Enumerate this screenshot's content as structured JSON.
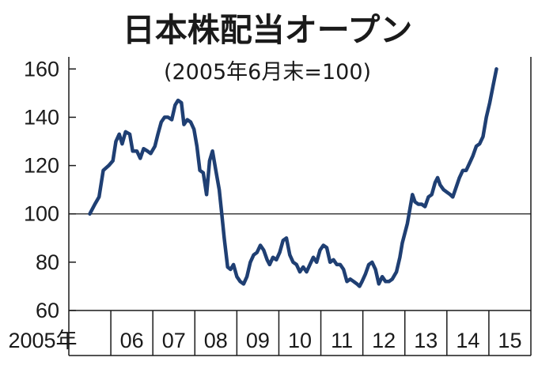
{
  "chart_data": {
    "type": "line",
    "title": "日本株配当オープン",
    "subtitle": "(2005年6月末=100)",
    "xlabel": "",
    "ylabel": "",
    "ylim": [
      60,
      165
    ],
    "yticks": [
      60,
      80,
      100,
      120,
      140,
      160
    ],
    "reference_line": 100,
    "grid": false,
    "x_categories": [
      "2005年",
      "06",
      "07",
      "08",
      "09",
      "10",
      "11",
      "12",
      "13",
      "14",
      "15"
    ],
    "series": [
      {
        "color": "#1f3f73",
        "points": [
          [
            2005.5,
            100
          ],
          [
            2005.62,
            104
          ],
          [
            2005.72,
            107
          ],
          [
            2005.82,
            118
          ],
          [
            2005.95,
            120
          ],
          [
            2006.05,
            122
          ],
          [
            2006.12,
            130
          ],
          [
            2006.2,
            133
          ],
          [
            2006.27,
            129
          ],
          [
            2006.35,
            134
          ],
          [
            2006.45,
            133
          ],
          [
            2006.52,
            126
          ],
          [
            2006.62,
            126
          ],
          [
            2006.7,
            123
          ],
          [
            2006.78,
            127
          ],
          [
            2006.87,
            126
          ],
          [
            2006.95,
            125
          ],
          [
            2007.05,
            128
          ],
          [
            2007.12,
            133
          ],
          [
            2007.2,
            138
          ],
          [
            2007.28,
            140
          ],
          [
            2007.36,
            140
          ],
          [
            2007.45,
            139
          ],
          [
            2007.53,
            145
          ],
          [
            2007.6,
            147
          ],
          [
            2007.68,
            146
          ],
          [
            2007.74,
            137
          ],
          [
            2007.82,
            139
          ],
          [
            2007.9,
            138
          ],
          [
            2007.98,
            135
          ],
          [
            2008.05,
            128
          ],
          [
            2008.12,
            118
          ],
          [
            2008.2,
            117
          ],
          [
            2008.28,
            108
          ],
          [
            2008.35,
            122
          ],
          [
            2008.42,
            126
          ],
          [
            2008.5,
            118
          ],
          [
            2008.58,
            110
          ],
          [
            2008.64,
            100
          ],
          [
            2008.7,
            90
          ],
          [
            2008.78,
            78
          ],
          [
            2008.85,
            77
          ],
          [
            2008.92,
            79
          ],
          [
            2009.0,
            74
          ],
          [
            2009.08,
            72
          ],
          [
            2009.16,
            71
          ],
          [
            2009.24,
            74
          ],
          [
            2009.32,
            80
          ],
          [
            2009.4,
            83
          ],
          [
            2009.48,
            84
          ],
          [
            2009.56,
            87
          ],
          [
            2009.64,
            85
          ],
          [
            2009.72,
            81
          ],
          [
            2009.78,
            79
          ],
          [
            2009.86,
            82
          ],
          [
            2009.94,
            81
          ],
          [
            2010.02,
            84
          ],
          [
            2010.1,
            89
          ],
          [
            2010.18,
            90
          ],
          [
            2010.26,
            83
          ],
          [
            2010.34,
            80
          ],
          [
            2010.42,
            79
          ],
          [
            2010.5,
            76
          ],
          [
            2010.58,
            78
          ],
          [
            2010.66,
            76
          ],
          [
            2010.74,
            79
          ],
          [
            2010.82,
            82
          ],
          [
            2010.9,
            80
          ],
          [
            2010.98,
            85
          ],
          [
            2011.06,
            87
          ],
          [
            2011.14,
            86
          ],
          [
            2011.22,
            80
          ],
          [
            2011.3,
            81
          ],
          [
            2011.38,
            79
          ],
          [
            2011.46,
            79
          ],
          [
            2011.54,
            77
          ],
          [
            2011.62,
            72
          ],
          [
            2011.7,
            73
          ],
          [
            2011.78,
            72
          ],
          [
            2011.86,
            71
          ],
          [
            2011.92,
            70
          ],
          [
            2011.98,
            72
          ],
          [
            2012.06,
            75
          ],
          [
            2012.14,
            79
          ],
          [
            2012.22,
            80
          ],
          [
            2012.3,
            77
          ],
          [
            2012.38,
            71
          ],
          [
            2012.46,
            74
          ],
          [
            2012.54,
            72
          ],
          [
            2012.62,
            72
          ],
          [
            2012.7,
            73
          ],
          [
            2012.8,
            76
          ],
          [
            2012.88,
            82
          ],
          [
            2012.94,
            88
          ],
          [
            2013.0,
            92
          ],
          [
            2013.06,
            96
          ],
          [
            2013.12,
            102
          ],
          [
            2013.18,
            108
          ],
          [
            2013.24,
            105
          ],
          [
            2013.32,
            104
          ],
          [
            2013.4,
            104
          ],
          [
            2013.48,
            103
          ],
          [
            2013.56,
            107
          ],
          [
            2013.64,
            108
          ],
          [
            2013.72,
            113
          ],
          [
            2013.78,
            115
          ],
          [
            2013.84,
            112
          ],
          [
            2013.92,
            110
          ],
          [
            2014.0,
            109
          ],
          [
            2014.08,
            108
          ],
          [
            2014.14,
            107
          ],
          [
            2014.22,
            111
          ],
          [
            2014.3,
            115
          ],
          [
            2014.38,
            118
          ],
          [
            2014.46,
            118
          ],
          [
            2014.54,
            121
          ],
          [
            2014.62,
            124
          ],
          [
            2014.7,
            128
          ],
          [
            2014.78,
            129
          ],
          [
            2014.86,
            132
          ],
          [
            2014.94,
            140
          ],
          [
            2015.02,
            146
          ],
          [
            2015.1,
            153
          ],
          [
            2015.18,
            160
          ]
        ]
      }
    ]
  }
}
